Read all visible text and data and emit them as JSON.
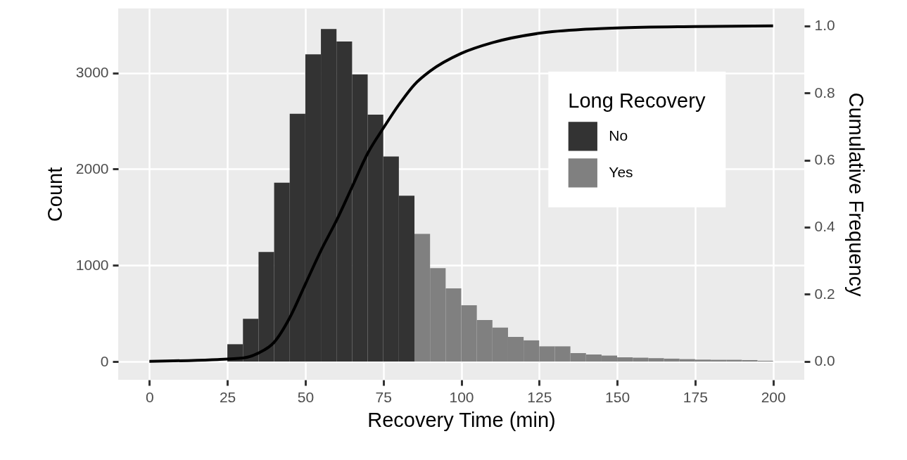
{
  "chart_data": {
    "type": "histogram",
    "xlabel": "Recovery Time (min)",
    "ylabel": "Count",
    "y2label": "Cumulative Frequency",
    "legend_title": "Long Recovery",
    "bins": [
      25,
      30,
      35,
      40,
      45,
      50,
      55,
      60,
      65,
      70,
      75,
      80,
      85,
      90,
      95,
      100,
      105,
      110,
      115,
      120,
      125,
      130,
      135,
      140,
      145,
      150,
      155,
      160,
      165,
      170,
      175,
      180,
      185,
      190,
      195,
      200
    ],
    "series": [
      {
        "name": "No",
        "color": "#333333",
        "values": [
          180,
          444,
          1139,
          1858,
          2576,
          3193,
          3456,
          3327,
          2985,
          2566,
          2132,
          1724,
          null,
          null,
          null,
          null,
          null,
          null,
          null,
          null,
          null,
          null,
          null,
          null,
          null,
          null,
          null,
          null,
          null,
          null,
          null,
          null,
          null,
          null,
          null
        ]
      },
      {
        "name": "Yes",
        "color": "#808080",
        "values": [
          null,
          null,
          null,
          null,
          null,
          null,
          null,
          null,
          null,
          null,
          null,
          null,
          1327,
          971,
          760,
          585,
          432,
          352,
          256,
          220,
          158,
          158,
          88,
          73,
          62,
          44,
          40,
          35,
          30,
          25,
          20,
          18,
          18,
          15,
          8
        ]
      },
      {
        "type": "line",
        "axis": "y2",
        "color": "#000000",
        "x": [
          0,
          20,
          30,
          35,
          40,
          45,
          50,
          55,
          60,
          65,
          70,
          75,
          80,
          85,
          90,
          100,
          110,
          125,
          140,
          150,
          175,
          200
        ],
        "values": [
          0,
          0.005,
          0.01,
          0.025,
          0.057,
          0.13,
          0.23,
          0.33,
          0.42,
          0.52,
          0.62,
          0.695,
          0.765,
          0.825,
          0.865,
          0.918,
          0.95,
          0.978,
          0.99,
          0.994,
          0.998,
          1.0
        ]
      }
    ],
    "xlim": [
      -10,
      210
    ],
    "xticks": [
      0,
      25,
      50,
      75,
      100,
      125,
      150,
      175,
      200
    ],
    "ylim": [
      -190,
      3670
    ],
    "yticks": [
      0,
      1000,
      2000,
      3000
    ],
    "y2lim": [
      -0.055,
      1.052
    ],
    "y2ticks": [
      {
        "value": 0,
        "label": "0.0"
      },
      0.2,
      0.4,
      0.6,
      0.8,
      {
        "value": 1,
        "label": "1.0"
      }
    ],
    "grid": true,
    "legend": "top right"
  }
}
